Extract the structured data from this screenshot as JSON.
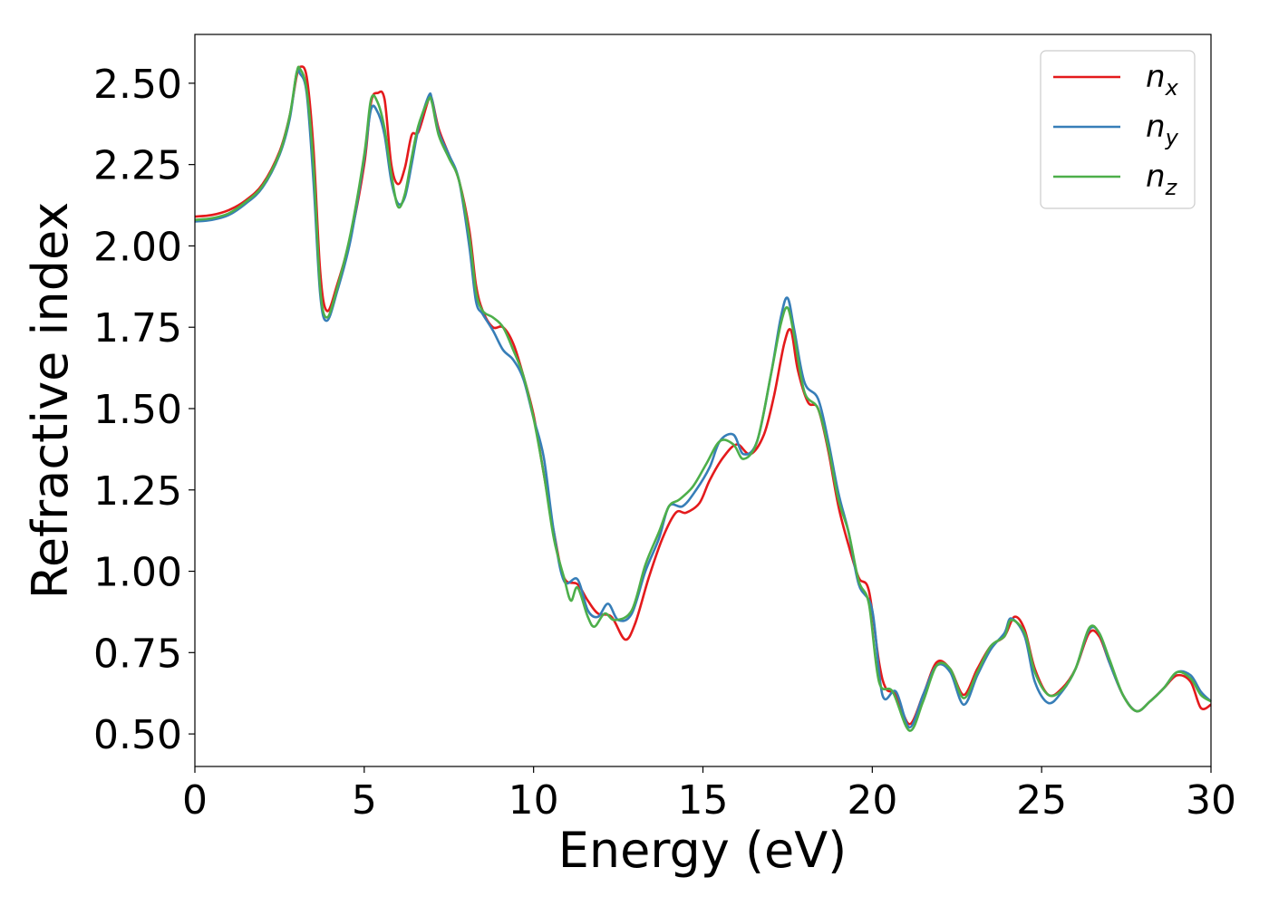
{
  "chart_data": {
    "type": "line",
    "title": "",
    "xlabel": "Energy (eV)",
    "ylabel": "Refractive index",
    "xlim": [
      0,
      30
    ],
    "ylim": [
      0.4,
      2.65
    ],
    "x_ticks": [
      0,
      5,
      10,
      15,
      20,
      25,
      30
    ],
    "y_ticks": [
      0.5,
      0.75,
      1.0,
      1.25,
      1.5,
      1.75,
      2.0,
      2.25,
      2.5
    ],
    "x_tick_labels": [
      "0",
      "5",
      "10",
      "15",
      "20",
      "25",
      "30"
    ],
    "y_tick_labels": [
      "0.50",
      "0.75",
      "1.00",
      "1.25",
      "1.50",
      "1.75",
      "2.00",
      "2.25",
      "2.50"
    ],
    "grid": false,
    "legend_position": "top-right",
    "series": [
      {
        "name": "n_x",
        "label_base": "n",
        "label_sub": "x",
        "color": "#e41a1c",
        "points": [
          [
            0,
            2.09
          ],
          [
            0.5,
            2.095
          ],
          [
            1,
            2.11
          ],
          [
            1.5,
            2.14
          ],
          [
            2,
            2.19
          ],
          [
            2.5,
            2.29
          ],
          [
            2.8,
            2.4
          ],
          [
            3.0,
            2.52
          ],
          [
            3.1,
            2.55
          ],
          [
            3.3,
            2.52
          ],
          [
            3.5,
            2.3
          ],
          [
            3.7,
            1.92
          ],
          [
            3.9,
            1.8
          ],
          [
            4.2,
            1.88
          ],
          [
            4.6,
            2.03
          ],
          [
            5.0,
            2.25
          ],
          [
            5.2,
            2.44
          ],
          [
            5.4,
            2.47
          ],
          [
            5.6,
            2.45
          ],
          [
            5.8,
            2.25
          ],
          [
            6.0,
            2.19
          ],
          [
            6.2,
            2.24
          ],
          [
            6.4,
            2.34
          ],
          [
            6.6,
            2.35
          ],
          [
            6.9,
            2.45
          ],
          [
            7.0,
            2.45
          ],
          [
            7.2,
            2.36
          ],
          [
            7.5,
            2.28
          ],
          [
            7.8,
            2.2
          ],
          [
            8.1,
            2.05
          ],
          [
            8.3,
            1.88
          ],
          [
            8.5,
            1.8
          ],
          [
            8.8,
            1.75
          ],
          [
            9.1,
            1.75
          ],
          [
            9.4,
            1.7
          ],
          [
            9.7,
            1.6
          ],
          [
            10.0,
            1.48
          ],
          [
            10.3,
            1.3
          ],
          [
            10.6,
            1.12
          ],
          [
            10.9,
            0.98
          ],
          [
            11.3,
            0.96
          ],
          [
            11.6,
            0.91
          ],
          [
            11.9,
            0.87
          ],
          [
            12.3,
            0.86
          ],
          [
            12.7,
            0.79
          ],
          [
            13.0,
            0.84
          ],
          [
            13.4,
            0.98
          ],
          [
            13.8,
            1.1
          ],
          [
            14.2,
            1.18
          ],
          [
            14.5,
            1.18
          ],
          [
            14.9,
            1.21
          ],
          [
            15.2,
            1.28
          ],
          [
            15.6,
            1.35
          ],
          [
            16.0,
            1.39
          ],
          [
            16.4,
            1.36
          ],
          [
            16.8,
            1.42
          ],
          [
            17.1,
            1.54
          ],
          [
            17.4,
            1.7
          ],
          [
            17.6,
            1.74
          ],
          [
            17.8,
            1.62
          ],
          [
            18.1,
            1.52
          ],
          [
            18.4,
            1.5
          ],
          [
            18.7,
            1.37
          ],
          [
            19.0,
            1.2
          ],
          [
            19.3,
            1.08
          ],
          [
            19.6,
            0.98
          ],
          [
            19.9,
            0.94
          ],
          [
            20.2,
            0.72
          ],
          [
            20.4,
            0.64
          ],
          [
            20.7,
            0.62
          ],
          [
            21.1,
            0.53
          ],
          [
            21.5,
            0.62
          ],
          [
            21.9,
            0.72
          ],
          [
            22.3,
            0.7
          ],
          [
            22.7,
            0.62
          ],
          [
            23.1,
            0.7
          ],
          [
            23.5,
            0.77
          ],
          [
            23.9,
            0.8
          ],
          [
            24.2,
            0.86
          ],
          [
            24.5,
            0.82
          ],
          [
            24.8,
            0.7
          ],
          [
            25.2,
            0.62
          ],
          [
            25.6,
            0.64
          ],
          [
            26.0,
            0.7
          ],
          [
            26.4,
            0.81
          ],
          [
            26.7,
            0.8
          ],
          [
            27.0,
            0.72
          ],
          [
            27.4,
            0.62
          ],
          [
            27.8,
            0.57
          ],
          [
            28.2,
            0.6
          ],
          [
            28.6,
            0.64
          ],
          [
            29.0,
            0.68
          ],
          [
            29.4,
            0.66
          ],
          [
            29.7,
            0.58
          ],
          [
            30.0,
            0.59
          ]
        ]
      },
      {
        "name": "n_y",
        "label_base": "n",
        "label_sub": "y",
        "color": "#377eb8",
        "points": [
          [
            0,
            2.075
          ],
          [
            0.5,
            2.08
          ],
          [
            1,
            2.095
          ],
          [
            1.5,
            2.13
          ],
          [
            2,
            2.18
          ],
          [
            2.5,
            2.28
          ],
          [
            2.8,
            2.39
          ],
          [
            3.0,
            2.53
          ],
          [
            3.1,
            2.53
          ],
          [
            3.3,
            2.47
          ],
          [
            3.5,
            2.2
          ],
          [
            3.7,
            1.85
          ],
          [
            3.9,
            1.77
          ],
          [
            4.2,
            1.86
          ],
          [
            4.6,
            2.02
          ],
          [
            5.0,
            2.27
          ],
          [
            5.2,
            2.42
          ],
          [
            5.4,
            2.41
          ],
          [
            5.6,
            2.34
          ],
          [
            5.8,
            2.2
          ],
          [
            6.0,
            2.13
          ],
          [
            6.2,
            2.15
          ],
          [
            6.4,
            2.25
          ],
          [
            6.6,
            2.36
          ],
          [
            6.9,
            2.46
          ],
          [
            7.0,
            2.45
          ],
          [
            7.2,
            2.35
          ],
          [
            7.5,
            2.28
          ],
          [
            7.8,
            2.2
          ],
          [
            8.1,
            2.0
          ],
          [
            8.3,
            1.83
          ],
          [
            8.5,
            1.79
          ],
          [
            8.8,
            1.74
          ],
          [
            9.1,
            1.68
          ],
          [
            9.4,
            1.65
          ],
          [
            9.7,
            1.59
          ],
          [
            10.0,
            1.47
          ],
          [
            10.3,
            1.35
          ],
          [
            10.6,
            1.12
          ],
          [
            10.9,
            0.97
          ],
          [
            11.3,
            0.975
          ],
          [
            11.6,
            0.88
          ],
          [
            11.9,
            0.86
          ],
          [
            12.2,
            0.9
          ],
          [
            12.5,
            0.85
          ],
          [
            12.9,
            0.87
          ],
          [
            13.3,
            1.0
          ],
          [
            13.7,
            1.1
          ],
          [
            14.0,
            1.2
          ],
          [
            14.4,
            1.2
          ],
          [
            14.8,
            1.25
          ],
          [
            15.2,
            1.32
          ],
          [
            15.5,
            1.4
          ],
          [
            15.9,
            1.42
          ],
          [
            16.2,
            1.36
          ],
          [
            16.6,
            1.4
          ],
          [
            17.0,
            1.6
          ],
          [
            17.3,
            1.78
          ],
          [
            17.5,
            1.84
          ],
          [
            17.7,
            1.74
          ],
          [
            18.0,
            1.58
          ],
          [
            18.4,
            1.53
          ],
          [
            18.7,
            1.4
          ],
          [
            19.0,
            1.24
          ],
          [
            19.3,
            1.12
          ],
          [
            19.6,
            0.96
          ],
          [
            20.0,
            0.88
          ],
          [
            20.3,
            0.62
          ],
          [
            20.7,
            0.63
          ],
          [
            21.1,
            0.52
          ],
          [
            21.5,
            0.62
          ],
          [
            21.9,
            0.71
          ],
          [
            22.3,
            0.69
          ],
          [
            22.7,
            0.59
          ],
          [
            23.1,
            0.68
          ],
          [
            23.5,
            0.76
          ],
          [
            23.9,
            0.81
          ],
          [
            24.1,
            0.855
          ],
          [
            24.5,
            0.8
          ],
          [
            24.8,
            0.66
          ],
          [
            25.2,
            0.595
          ],
          [
            25.6,
            0.63
          ],
          [
            26.0,
            0.7
          ],
          [
            26.4,
            0.82
          ],
          [
            26.7,
            0.81
          ],
          [
            27.0,
            0.72
          ],
          [
            27.4,
            0.62
          ],
          [
            27.8,
            0.57
          ],
          [
            28.2,
            0.6
          ],
          [
            28.6,
            0.64
          ],
          [
            29.0,
            0.69
          ],
          [
            29.4,
            0.68
          ],
          [
            29.7,
            0.63
          ],
          [
            30.0,
            0.6
          ]
        ]
      },
      {
        "name": "n_z",
        "label_base": "n",
        "label_sub": "z",
        "color": "#4daf4a",
        "points": [
          [
            0,
            2.08
          ],
          [
            0.5,
            2.085
          ],
          [
            1,
            2.1
          ],
          [
            1.5,
            2.135
          ],
          [
            2,
            2.185
          ],
          [
            2.5,
            2.285
          ],
          [
            2.8,
            2.4
          ],
          [
            3.0,
            2.53
          ],
          [
            3.1,
            2.545
          ],
          [
            3.3,
            2.48
          ],
          [
            3.5,
            2.25
          ],
          [
            3.7,
            1.87
          ],
          [
            3.9,
            1.78
          ],
          [
            4.2,
            1.87
          ],
          [
            4.6,
            2.04
          ],
          [
            5.0,
            2.28
          ],
          [
            5.2,
            2.45
          ],
          [
            5.4,
            2.44
          ],
          [
            5.6,
            2.36
          ],
          [
            5.8,
            2.22
          ],
          [
            6.0,
            2.12
          ],
          [
            6.2,
            2.16
          ],
          [
            6.4,
            2.27
          ],
          [
            6.6,
            2.37
          ],
          [
            6.9,
            2.45
          ],
          [
            7.0,
            2.44
          ],
          [
            7.2,
            2.34
          ],
          [
            7.5,
            2.27
          ],
          [
            7.8,
            2.2
          ],
          [
            8.1,
            2.03
          ],
          [
            8.3,
            1.86
          ],
          [
            8.5,
            1.8
          ],
          [
            8.8,
            1.78
          ],
          [
            9.1,
            1.75
          ],
          [
            9.4,
            1.68
          ],
          [
            9.7,
            1.6
          ],
          [
            10.0,
            1.47
          ],
          [
            10.3,
            1.3
          ],
          [
            10.6,
            1.1
          ],
          [
            10.9,
            0.98
          ],
          [
            11.1,
            0.91
          ],
          [
            11.3,
            0.95
          ],
          [
            11.6,
            0.86
          ],
          [
            11.8,
            0.83
          ],
          [
            12.1,
            0.87
          ],
          [
            12.4,
            0.85
          ],
          [
            12.9,
            0.88
          ],
          [
            13.3,
            1.02
          ],
          [
            13.7,
            1.12
          ],
          [
            14.0,
            1.2
          ],
          [
            14.3,
            1.22
          ],
          [
            14.7,
            1.26
          ],
          [
            15.1,
            1.33
          ],
          [
            15.5,
            1.4
          ],
          [
            15.9,
            1.39
          ],
          [
            16.2,
            1.345
          ],
          [
            16.6,
            1.4
          ],
          [
            17.0,
            1.6
          ],
          [
            17.3,
            1.76
          ],
          [
            17.5,
            1.81
          ],
          [
            17.7,
            1.72
          ],
          [
            18.0,
            1.55
          ],
          [
            18.4,
            1.5
          ],
          [
            18.7,
            1.38
          ],
          [
            19.0,
            1.22
          ],
          [
            19.3,
            1.12
          ],
          [
            19.6,
            0.97
          ],
          [
            19.9,
            0.9
          ],
          [
            20.2,
            0.66
          ],
          [
            20.6,
            0.63
          ],
          [
            21.1,
            0.51
          ],
          [
            21.5,
            0.6
          ],
          [
            21.9,
            0.71
          ],
          [
            22.3,
            0.7
          ],
          [
            22.7,
            0.61
          ],
          [
            23.1,
            0.69
          ],
          [
            23.5,
            0.77
          ],
          [
            23.9,
            0.8
          ],
          [
            24.1,
            0.85
          ],
          [
            24.5,
            0.81
          ],
          [
            24.8,
            0.69
          ],
          [
            25.2,
            0.62
          ],
          [
            25.6,
            0.635
          ],
          [
            26.0,
            0.7
          ],
          [
            26.4,
            0.825
          ],
          [
            26.7,
            0.81
          ],
          [
            27.0,
            0.73
          ],
          [
            27.4,
            0.62
          ],
          [
            27.8,
            0.57
          ],
          [
            28.2,
            0.6
          ],
          [
            28.6,
            0.64
          ],
          [
            29.0,
            0.69
          ],
          [
            29.4,
            0.67
          ],
          [
            29.7,
            0.62
          ],
          [
            30.0,
            0.6
          ]
        ]
      }
    ]
  }
}
